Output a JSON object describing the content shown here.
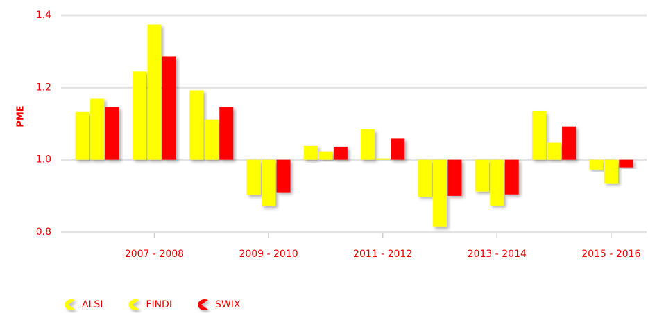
{
  "chart_data": {
    "type": "bar",
    "ylabel": "PME",
    "categories": [
      null,
      "2007 - 2008",
      null,
      "2009 - 2010",
      null,
      "2011 - 2012",
      null,
      "2013 - 2014",
      null,
      "2015 - 2016"
    ],
    "series": [
      {
        "name": "ALSI",
        "color": "#ffff00",
        "values": [
          1.132,
          1.244,
          1.192,
          0.902,
          1.038,
          1.084,
          0.898,
          0.912,
          1.134,
          0.973
        ]
      },
      {
        "name": "FINDI",
        "color": "#ffff00",
        "values": [
          1.169,
          1.374,
          1.111,
          0.871,
          1.023,
          1.004,
          0.814,
          0.873,
          1.048,
          0.935
        ]
      },
      {
        "name": "SWIX",
        "color": "#ff0000",
        "values": [
          1.146,
          1.286,
          1.146,
          0.91,
          1.036,
          1.058,
          0.9,
          0.904,
          1.092,
          0.979
        ]
      }
    ],
    "baseline": 1,
    "ylim": [
      0.8,
      1.4
    ],
    "yticks": [
      {
        "value": 0.8,
        "label": "0.8"
      },
      {
        "value": 1.0,
        "label": "1.0"
      },
      {
        "value": 1.2,
        "label": "1.2"
      },
      {
        "value": 1.4,
        "label": "1.4"
      }
    ],
    "grid": true,
    "legend": "bottom-left"
  }
}
